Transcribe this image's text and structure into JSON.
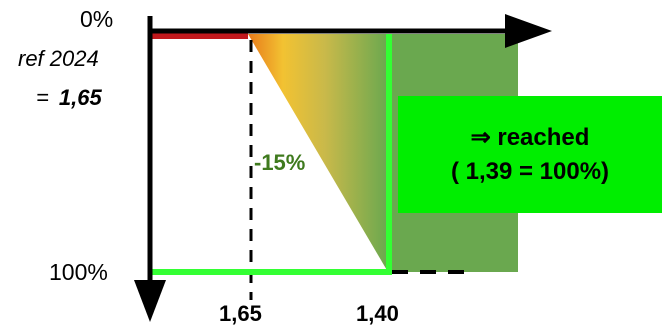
{
  "axis": {
    "top_label": "0%",
    "ref_label": "ref 2024",
    "ref_value_prefix": "=",
    "ref_value": "1,65",
    "bottom_label": "100%"
  },
  "ticks": [
    "1,65",
    "1,40"
  ],
  "reduction_label": "-15%",
  "result": {
    "line1": "⇒ reached",
    "line2": "( 1,39 = 100%)"
  },
  "colors": {
    "axis": "#000000",
    "start_line": "#c0181c",
    "target_line": "#33ff33",
    "area": "#6aa84f",
    "gradient_start": "#e87a1a",
    "gradient_mid": "#f2c232",
    "result_box": "#00ee00",
    "reduction_text": "#3f7a1e"
  }
}
